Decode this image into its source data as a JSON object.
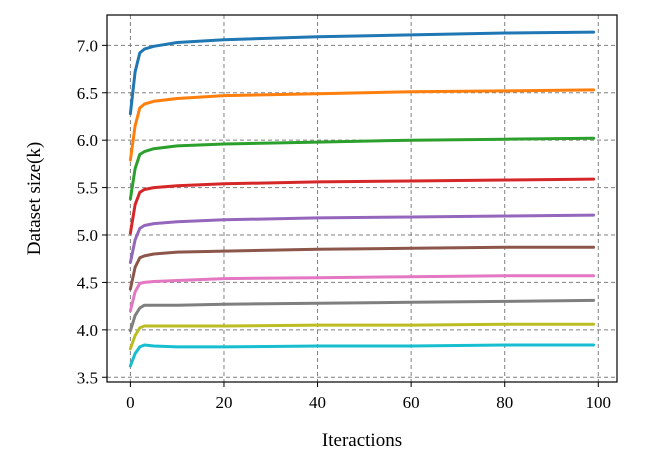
{
  "chart_data": {
    "type": "line",
    "title": "",
    "xlabel": "Iteractions",
    "ylabel": "Dataset size(k)",
    "xlim": [
      -5,
      104
    ],
    "ylim": [
      3.45,
      7.32
    ],
    "xticks": [
      0,
      20,
      40,
      60,
      80,
      100
    ],
    "yticks": [
      3.5,
      4.0,
      4.5,
      5.0,
      5.5,
      6.0,
      6.5,
      7.0
    ],
    "xtick_labels": [
      "0",
      "20",
      "40",
      "60",
      "80",
      "100"
    ],
    "ytick_labels": [
      "3.5",
      "4.0",
      "4.5",
      "5.0",
      "5.5",
      "6.0",
      "6.5",
      "7.0"
    ],
    "grid": true,
    "grid_style": "dashed",
    "legend": "none",
    "series": [
      {
        "color": "#1f77b4",
        "x": [
          0,
          1,
          2,
          3,
          5,
          10,
          20,
          40,
          60,
          80,
          99
        ],
        "y": [
          6.28,
          6.72,
          6.92,
          6.96,
          6.99,
          7.03,
          7.06,
          7.09,
          7.11,
          7.13,
          7.14
        ]
      },
      {
        "color": "#ff7f0e",
        "x": [
          0,
          1,
          2,
          3,
          5,
          10,
          20,
          40,
          60,
          80,
          99
        ],
        "y": [
          5.79,
          6.15,
          6.34,
          6.38,
          6.41,
          6.44,
          6.47,
          6.49,
          6.51,
          6.52,
          6.53
        ]
      },
      {
        "color": "#2ca02c",
        "x": [
          0,
          1,
          2,
          3,
          5,
          10,
          20,
          40,
          60,
          80,
          99
        ],
        "y": [
          5.38,
          5.7,
          5.85,
          5.88,
          5.91,
          5.94,
          5.96,
          5.98,
          6.0,
          6.01,
          6.02
        ]
      },
      {
        "color": "#d62728",
        "x": [
          0,
          1,
          2,
          3,
          5,
          10,
          20,
          40,
          60,
          80,
          99
        ],
        "y": [
          5.02,
          5.32,
          5.45,
          5.48,
          5.5,
          5.52,
          5.54,
          5.56,
          5.57,
          5.58,
          5.59
        ]
      },
      {
        "color": "#9467bd",
        "x": [
          0,
          1,
          2,
          3,
          5,
          10,
          20,
          40,
          60,
          80,
          99
        ],
        "y": [
          4.71,
          4.95,
          5.07,
          5.1,
          5.12,
          5.14,
          5.16,
          5.18,
          5.19,
          5.2,
          5.21
        ]
      },
      {
        "color": "#8c564b",
        "x": [
          0,
          1,
          2,
          3,
          5,
          10,
          20,
          40,
          60,
          80,
          99
        ],
        "y": [
          4.43,
          4.66,
          4.76,
          4.78,
          4.8,
          4.82,
          4.83,
          4.85,
          4.86,
          4.87,
          4.87
        ]
      },
      {
        "color": "#e377c2",
        "x": [
          0,
          1,
          2,
          3,
          5,
          10,
          20,
          40,
          60,
          80,
          99
        ],
        "y": [
          4.2,
          4.4,
          4.49,
          4.5,
          4.51,
          4.52,
          4.54,
          4.55,
          4.56,
          4.57,
          4.57
        ]
      },
      {
        "color": "#7f7f7f",
        "x": [
          0,
          1,
          2,
          3,
          5,
          10,
          20,
          40,
          60,
          80,
          99
        ],
        "y": [
          3.99,
          4.15,
          4.23,
          4.26,
          4.26,
          4.26,
          4.27,
          4.28,
          4.29,
          4.3,
          4.31
        ]
      },
      {
        "color": "#bcbd22",
        "x": [
          0,
          1,
          2,
          3,
          5,
          10,
          20,
          40,
          60,
          80,
          99
        ],
        "y": [
          3.8,
          3.94,
          4.02,
          4.04,
          4.04,
          4.04,
          4.04,
          4.05,
          4.05,
          4.06,
          4.06
        ]
      },
      {
        "color": "#17becf",
        "x": [
          0,
          1,
          2,
          3,
          5,
          10,
          20,
          40,
          60,
          80,
          99
        ],
        "y": [
          3.62,
          3.75,
          3.82,
          3.84,
          3.83,
          3.82,
          3.82,
          3.83,
          3.83,
          3.84,
          3.84
        ]
      }
    ]
  }
}
